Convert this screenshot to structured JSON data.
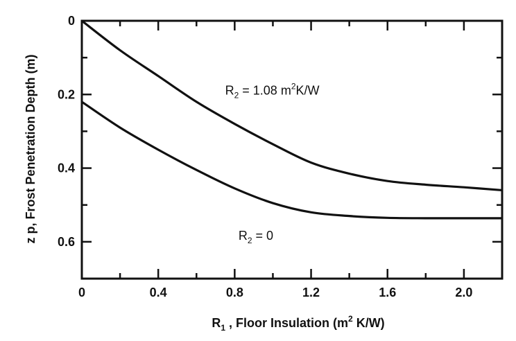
{
  "chart_data": {
    "type": "line",
    "title": "",
    "xlabel": {
      "pre": "R",
      "sub": "1",
      "mid": " , Floor Insulation (m",
      "sup": "2",
      "post": " K/W)"
    },
    "ylabel": "z p, Frost Penetration Depth (m)",
    "xlim": [
      0,
      2.2
    ],
    "ylim": [
      0,
      0.7
    ],
    "y_inverted": true,
    "x_ticks": [
      0,
      0.4,
      0.8,
      1.2,
      1.6,
      2.0
    ],
    "x_tick_labels": [
      "0",
      "0.4",
      "0.8",
      "1.2",
      "1.6",
      "2.0"
    ],
    "y_ticks": [
      0,
      0.2,
      0.4,
      0.6
    ],
    "y_tick_labels": [
      "0",
      "0.2",
      "0.4",
      "0.6"
    ],
    "series": [
      {
        "name": "R2 = 1.08 m2K/W",
        "x": [
          0,
          0.2,
          0.4,
          0.6,
          0.8,
          1.0,
          1.2,
          1.4,
          1.6,
          1.8,
          2.0,
          2.2
        ],
        "y": [
          0.0,
          0.08,
          0.15,
          0.22,
          0.28,
          0.335,
          0.385,
          0.415,
          0.435,
          0.445,
          0.452,
          0.46
        ]
      },
      {
        "name": "R2 = 0",
        "x": [
          0,
          0.2,
          0.4,
          0.6,
          0.8,
          1.0,
          1.2,
          1.4,
          1.6,
          1.8,
          2.0,
          2.2
        ],
        "y": [
          0.22,
          0.29,
          0.35,
          0.405,
          0.455,
          0.495,
          0.52,
          0.53,
          0.535,
          0.536,
          0.536,
          0.536
        ]
      }
    ],
    "annotations": [
      {
        "pre": "R",
        "sub": "2",
        "mid": " = 1.08 m",
        "sup": "2",
        "post": "K/W",
        "at_x": 0.75,
        "at_y": 0.2
      },
      {
        "pre": "R",
        "sub": "2",
        "mid": " = 0",
        "sup": "",
        "post": "",
        "at_x": 0.82,
        "at_y": 0.595
      }
    ]
  }
}
